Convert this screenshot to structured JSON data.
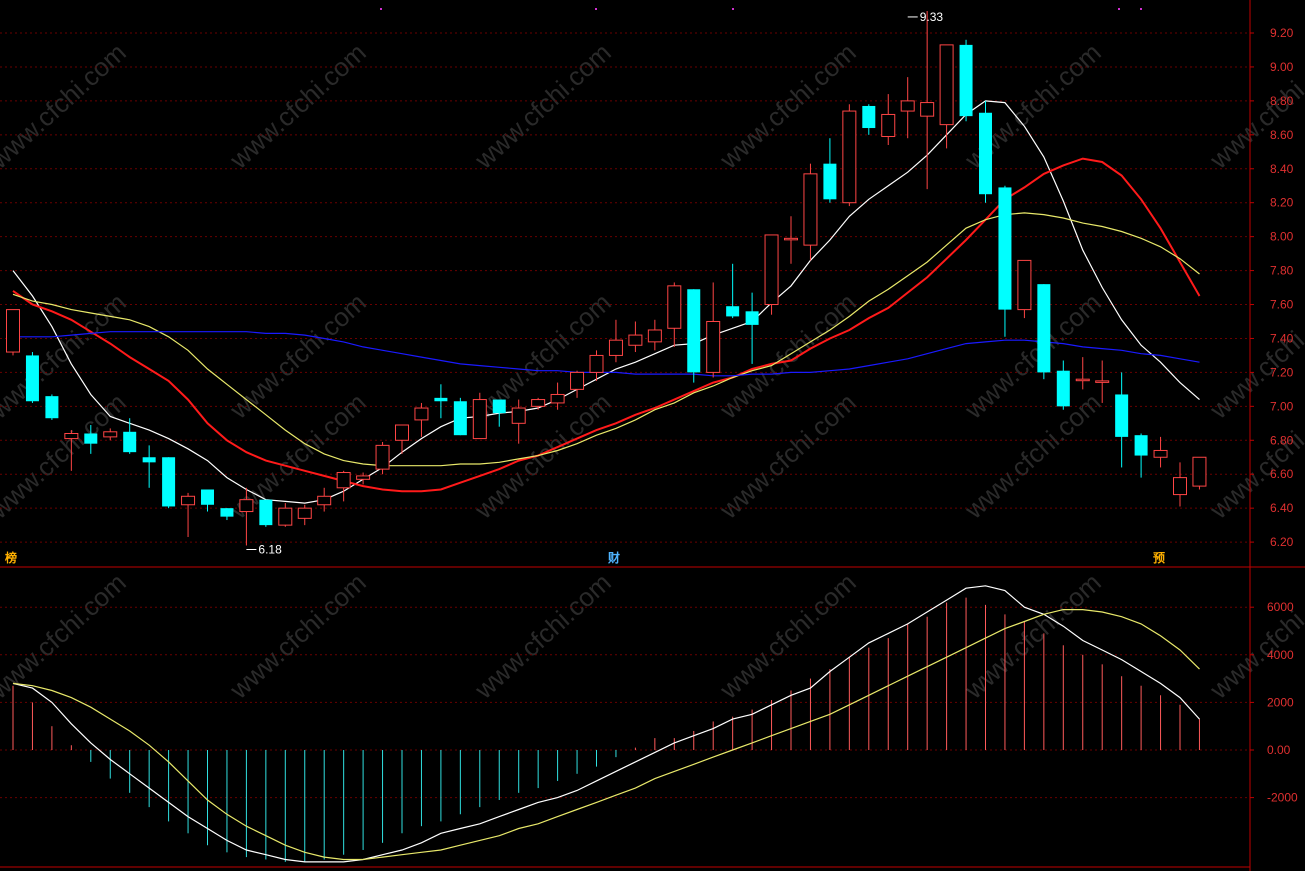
{
  "colors": {
    "background": "#000000",
    "axis": "#c00000",
    "grid": "#6a0000",
    "up_candle": "#ff4545",
    "down_candle": "#00ffff",
    "ma_white": "#ffffff",
    "ma_red": "#ff1a1a",
    "ma_yellow": "#e8e86a",
    "ma_blue": "#1a1aff",
    "macd_pos": "#ff5a5a",
    "macd_neg": "#30e0e0"
  },
  "markers": {
    "left": "榜",
    "middle": "财",
    "right": "预"
  },
  "watermark": "www.cfchi.com",
  "chart_data": [
    {
      "type": "candlestick",
      "ylim": [
        6.1,
        9.3
      ],
      "yticks": [
        "9.20",
        "9.00",
        "8.80",
        "8.60",
        "8.40",
        "8.20",
        "8.00",
        "7.80",
        "7.60",
        "7.40",
        "7.20",
        "7.00",
        "6.80",
        "6.60",
        "6.40",
        "6.20"
      ],
      "annotations": [
        {
          "text": "9.33",
          "index": 46,
          "price": 9.33
        },
        {
          "text": "6.18",
          "index": 12,
          "price": 6.18
        }
      ],
      "candles": [
        [
          7.32,
          7.57,
          7.57,
          7.3
        ],
        [
          7.3,
          7.03,
          7.32,
          7.02
        ],
        [
          7.06,
          6.93,
          7.07,
          6.92
        ],
        [
          6.81,
          6.84,
          6.86,
          6.62
        ],
        [
          6.84,
          6.78,
          6.89,
          6.72
        ],
        [
          6.82,
          6.85,
          6.87,
          6.8
        ],
        [
          6.85,
          6.73,
          6.93,
          6.72
        ],
        [
          6.7,
          6.67,
          6.77,
          6.52
        ],
        [
          6.7,
          6.41,
          6.7,
          6.4
        ],
        [
          6.42,
          6.47,
          6.49,
          6.23
        ],
        [
          6.51,
          6.42,
          6.51,
          6.38
        ],
        [
          6.4,
          6.35,
          6.4,
          6.33
        ],
        [
          6.38,
          6.45,
          6.52,
          6.18
        ],
        [
          6.45,
          6.3,
          6.45,
          6.29
        ],
        [
          6.3,
          6.4,
          6.43,
          6.29
        ],
        [
          6.34,
          6.4,
          6.42,
          6.3
        ],
        [
          6.42,
          6.47,
          6.52,
          6.38
        ],
        [
          6.52,
          6.61,
          6.62,
          6.44
        ],
        [
          6.57,
          6.59,
          6.61,
          6.54
        ],
        [
          6.63,
          6.77,
          6.79,
          6.6
        ],
        [
          6.8,
          6.89,
          6.89,
          6.72
        ],
        [
          6.92,
          6.99,
          7.02,
          6.82
        ],
        [
          7.05,
          7.03,
          7.13,
          6.93
        ],
        [
          7.03,
          6.83,
          7.05,
          6.83
        ],
        [
          6.81,
          7.04,
          7.08,
          6.81
        ],
        [
          7.04,
          6.96,
          7.04,
          6.88
        ],
        [
          6.9,
          6.99,
          7.04,
          6.78
        ],
        [
          7.0,
          7.04,
          7.05,
          6.98
        ],
        [
          7.02,
          7.07,
          7.14,
          6.98
        ],
        [
          7.1,
          7.2,
          7.21,
          7.05
        ],
        [
          7.2,
          7.3,
          7.33,
          7.15
        ],
        [
          7.3,
          7.39,
          7.51,
          7.26
        ],
        [
          7.36,
          7.42,
          7.5,
          7.32
        ],
        [
          7.38,
          7.45,
          7.51,
          7.33
        ],
        [
          7.46,
          7.71,
          7.73,
          7.35
        ],
        [
          7.69,
          7.2,
          7.69,
          7.14
        ],
        [
          7.2,
          7.5,
          7.73,
          7.17
        ],
        [
          7.59,
          7.53,
          7.84,
          7.52
        ],
        [
          7.56,
          7.48,
          7.67,
          7.25
        ],
        [
          7.6,
          8.01,
          8.01,
          7.54
        ],
        [
          7.99,
          7.99,
          8.12,
          7.84
        ],
        [
          7.95,
          8.37,
          8.43,
          7.86
        ],
        [
          8.43,
          8.22,
          8.58,
          8.2
        ],
        [
          8.2,
          8.74,
          8.78,
          8.18
        ],
        [
          8.77,
          8.64,
          8.78,
          8.6
        ],
        [
          8.59,
          8.72,
          8.84,
          8.54
        ],
        [
          8.74,
          8.8,
          8.94,
          8.58
        ],
        [
          8.71,
          8.79,
          9.33,
          8.28
        ],
        [
          8.66,
          9.13,
          9.13,
          8.52
        ],
        [
          9.13,
          8.71,
          9.16,
          8.68
        ],
        [
          8.73,
          8.25,
          8.8,
          8.2
        ],
        [
          8.29,
          7.57,
          8.3,
          7.41
        ],
        [
          7.57,
          7.86,
          7.86,
          7.52
        ],
        [
          7.72,
          7.2,
          7.72,
          7.16
        ],
        [
          7.21,
          7.0,
          7.27,
          6.98
        ],
        [
          7.16,
          7.16,
          7.29,
          7.1
        ],
        [
          7.15,
          7.15,
          7.27,
          7.02
        ],
        [
          7.07,
          6.82,
          7.2,
          6.64
        ],
        [
          6.83,
          6.71,
          6.84,
          6.58
        ],
        [
          6.7,
          6.74,
          6.82,
          6.64
        ],
        [
          6.48,
          6.58,
          6.67,
          6.41
        ],
        [
          6.53,
          6.7,
          6.7,
          6.51
        ]
      ],
      "series": [
        {
          "name": "",
          "color_key": "ma_white",
          "values": [
            7.8,
            7.65,
            7.47,
            7.25,
            7.07,
            6.94,
            6.9,
            6.86,
            6.81,
            6.75,
            6.68,
            6.58,
            6.51,
            6.45,
            6.44,
            6.43,
            6.45,
            6.5,
            6.57,
            6.64,
            6.73,
            6.81,
            6.88,
            6.93,
            6.94,
            6.96,
            6.97,
            6.99,
            7.04,
            7.1,
            7.16,
            7.22,
            7.26,
            7.31,
            7.36,
            7.37,
            7.42,
            7.46,
            7.5,
            7.61,
            7.71,
            7.86,
            7.98,
            8.12,
            8.22,
            8.3,
            8.38,
            8.48,
            8.6,
            8.72,
            8.8,
            8.79,
            8.65,
            8.47,
            8.21,
            7.92,
            7.7,
            7.51,
            7.36,
            7.26,
            7.14,
            7.04
          ]
        },
        {
          "name": "",
          "color_key": "ma_red",
          "values": [
            7.68,
            7.6,
            7.56,
            7.51,
            7.44,
            7.37,
            7.29,
            7.22,
            7.15,
            7.04,
            6.9,
            6.8,
            6.73,
            6.68,
            6.65,
            6.62,
            6.59,
            6.56,
            6.53,
            6.51,
            6.5,
            6.5,
            6.51,
            6.55,
            6.59,
            6.63,
            6.68,
            6.71,
            6.76,
            6.81,
            6.86,
            6.9,
            6.95,
            6.99,
            7.04,
            7.09,
            7.14,
            7.17,
            7.22,
            7.25,
            7.27,
            7.34,
            7.4,
            7.45,
            7.52,
            7.58,
            7.67,
            7.76,
            7.87,
            7.98,
            8.1,
            8.22,
            8.29,
            8.37,
            8.42,
            8.46,
            8.44,
            8.36,
            8.22,
            8.05,
            7.85,
            7.65
          ]
        },
        {
          "name": "",
          "color_key": "ma_yellow",
          "values": [
            7.66,
            7.62,
            7.6,
            7.57,
            7.55,
            7.53,
            7.51,
            7.47,
            7.41,
            7.33,
            7.22,
            7.13,
            7.04,
            6.95,
            6.86,
            6.78,
            6.72,
            6.68,
            6.66,
            6.65,
            6.65,
            6.65,
            6.65,
            6.66,
            6.66,
            6.67,
            6.69,
            6.71,
            6.74,
            6.78,
            6.83,
            6.87,
            6.92,
            6.98,
            7.02,
            7.08,
            7.12,
            7.17,
            7.21,
            7.24,
            7.31,
            7.38,
            7.45,
            7.53,
            7.62,
            7.69,
            7.77,
            7.85,
            7.95,
            8.05,
            8.1,
            8.13,
            8.14,
            8.13,
            8.11,
            8.08,
            8.06,
            8.03,
            7.99,
            7.94,
            7.87,
            7.78
          ]
        },
        {
          "name": "",
          "color_key": "ma_blue",
          "values": [
            7.41,
            7.41,
            7.41,
            7.42,
            7.43,
            7.44,
            7.44,
            7.44,
            7.44,
            7.44,
            7.44,
            7.44,
            7.44,
            7.43,
            7.43,
            7.42,
            7.4,
            7.38,
            7.35,
            7.33,
            7.31,
            7.29,
            7.27,
            7.25,
            7.24,
            7.23,
            7.22,
            7.21,
            7.21,
            7.2,
            7.2,
            7.2,
            7.19,
            7.19,
            7.19,
            7.19,
            7.18,
            7.18,
            7.19,
            7.19,
            7.2,
            7.2,
            7.21,
            7.22,
            7.24,
            7.26,
            7.28,
            7.31,
            7.34,
            7.37,
            7.38,
            7.39,
            7.39,
            7.38,
            7.37,
            7.35,
            7.34,
            7.33,
            7.31,
            7.3,
            7.28,
            7.26
          ]
        }
      ]
    },
    {
      "type": "macd",
      "ylim": [
        -4900,
        7000
      ],
      "yticks": [
        {
          "label": "6000",
          "value": 6000
        },
        {
          "label": "4000",
          "value": 4000
        },
        {
          "label": "2000",
          "value": 2000
        },
        {
          "label": "0.00",
          "value": 0
        },
        {
          "label": "-2000",
          "value": -2000
        }
      ],
      "bars": [
        2700,
        2000,
        1000,
        200,
        -500,
        -1200,
        -1800,
        -2400,
        -3000,
        -3500,
        -4000,
        -4300,
        -4500,
        -4600,
        -4700,
        -4700,
        -4600,
        -4400,
        -4200,
        -3900,
        -3500,
        -3200,
        -3000,
        -2700,
        -2400,
        -2100,
        -1800,
        -1600,
        -1300,
        -1000,
        -700,
        -300,
        100,
        500,
        500,
        800,
        1200,
        1400,
        1700,
        2100,
        2500,
        3000,
        3400,
        3900,
        4300,
        4700,
        5300,
        5600,
        6200,
        6400,
        6100,
        5700,
        5400,
        4900,
        4400,
        4000,
        3600,
        3100,
        2700,
        2300,
        1900,
        1300
      ],
      "series": [
        {
          "name": "",
          "color_key": "ma_white",
          "values": [
            2800,
            2600,
            2000,
            1100,
            300,
            -400,
            -1000,
            -1600,
            -2200,
            -2800,
            -3300,
            -3800,
            -4200,
            -4400,
            -4600,
            -4700,
            -4700,
            -4700,
            -4600,
            -4400,
            -4200,
            -3900,
            -3500,
            -3300,
            -3100,
            -2800,
            -2500,
            -2200,
            -2000,
            -1700,
            -1300,
            -900,
            -500,
            -100,
            300,
            600,
            900,
            1300,
            1500,
            1900,
            2300,
            2600,
            3300,
            3900,
            4500,
            4900,
            5300,
            5800,
            6300,
            6800,
            6900,
            6700,
            6000,
            5700,
            5200,
            4600,
            4200,
            3800,
            3300,
            2800,
            2200,
            1300
          ]
        },
        {
          "name": "",
          "color_key": "ma_yellow",
          "values": [
            2800,
            2700,
            2500,
            2200,
            1800,
            1300,
            800,
            200,
            -500,
            -1300,
            -2100,
            -2700,
            -3200,
            -3600,
            -4000,
            -4300,
            -4500,
            -4600,
            -4600,
            -4500,
            -4400,
            -4300,
            -4200,
            -4000,
            -3800,
            -3600,
            -3300,
            -3100,
            -2800,
            -2500,
            -2200,
            -1900,
            -1600,
            -1200,
            -900,
            -600,
            -300,
            0,
            300,
            600,
            900,
            1200,
            1500,
            1900,
            2300,
            2700,
            3100,
            3500,
            3900,
            4300,
            4700,
            5100,
            5400,
            5700,
            5900,
            5900,
            5800,
            5600,
            5300,
            4800,
            4200,
            3400
          ]
        }
      ]
    }
  ]
}
